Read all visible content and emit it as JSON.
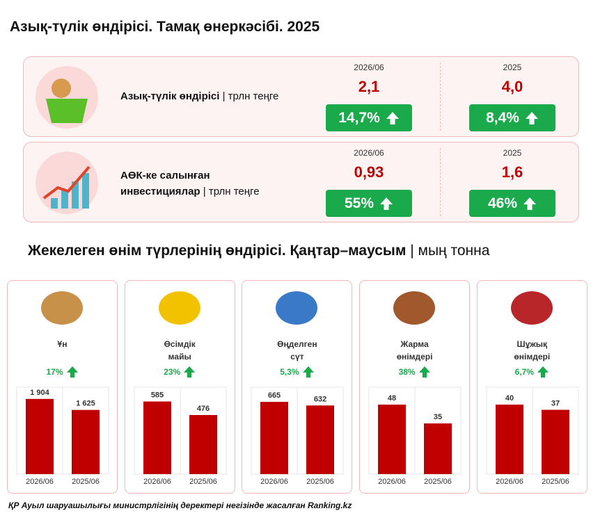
{
  "title": "Азық-түлік өндірісі. Тамақ өнеркәсібі. 2025",
  "kpis": [
    {
      "label": "Азық-түлік өндірісі",
      "unit": "трлн теңге",
      "columns": [
        {
          "period": "2026/06",
          "value": "2,1",
          "change": "14,7%"
        },
        {
          "period": "2025",
          "value": "4,0",
          "change": "8,4%"
        }
      ]
    },
    {
      "label": "АӨК-ке салынған\nинвестициялар",
      "unit": "трлн теңге",
      "columns": [
        {
          "period": "2026/06",
          "value": "0,93",
          "change": "55%"
        },
        {
          "period": "2025",
          "value": "1,6",
          "change": "46%"
        }
      ]
    }
  ],
  "section": {
    "title": "Жекелеген өнім түрлерінің өндірісі. Қаңтар–маусым",
    "unit": "мың тонна"
  },
  "chart_data": [
    {
      "type": "bar",
      "title": "Ұн",
      "change": "17%",
      "categories": [
        "2026/06",
        "2025/06"
      ],
      "values": [
        1904,
        1625
      ],
      "value_labels": [
        "1 904",
        "1 625"
      ],
      "color": "#c00000",
      "ylim": [
        0,
        2200
      ]
    },
    {
      "type": "bar",
      "title": "Өсімдік\nмайы",
      "change": "23%",
      "categories": [
        "2026/06",
        "2025/06"
      ],
      "values": [
        585,
        476
      ],
      "color": "#c00000",
      "ylim": [
        0,
        700
      ]
    },
    {
      "type": "bar",
      "title": "Өңделген\nсүт",
      "change": "5,3%",
      "categories": [
        "2026/06",
        "2025/06"
      ],
      "values": [
        665,
        632
      ],
      "color": "#c00000",
      "ylim": [
        0,
        800
      ]
    },
    {
      "type": "bar",
      "title": "Жарма\nөнімдері",
      "change": "38%",
      "categories": [
        "2026/06",
        "2025/06"
      ],
      "values": [
        48,
        35
      ],
      "color": "#c00000",
      "ylim": [
        0,
        60
      ]
    },
    {
      "type": "bar",
      "title": "Шұжық\nөнімдері",
      "change": "6,7%",
      "categories": [
        "2026/06",
        "2025/06"
      ],
      "values": [
        40,
        37
      ],
      "color": "#c00000",
      "ylim": [
        0,
        50
      ]
    }
  ],
  "footer": "ҚР Ауыл шаруашылығы министрлігінің деректері негізінде жасалған Ranking.kz"
}
